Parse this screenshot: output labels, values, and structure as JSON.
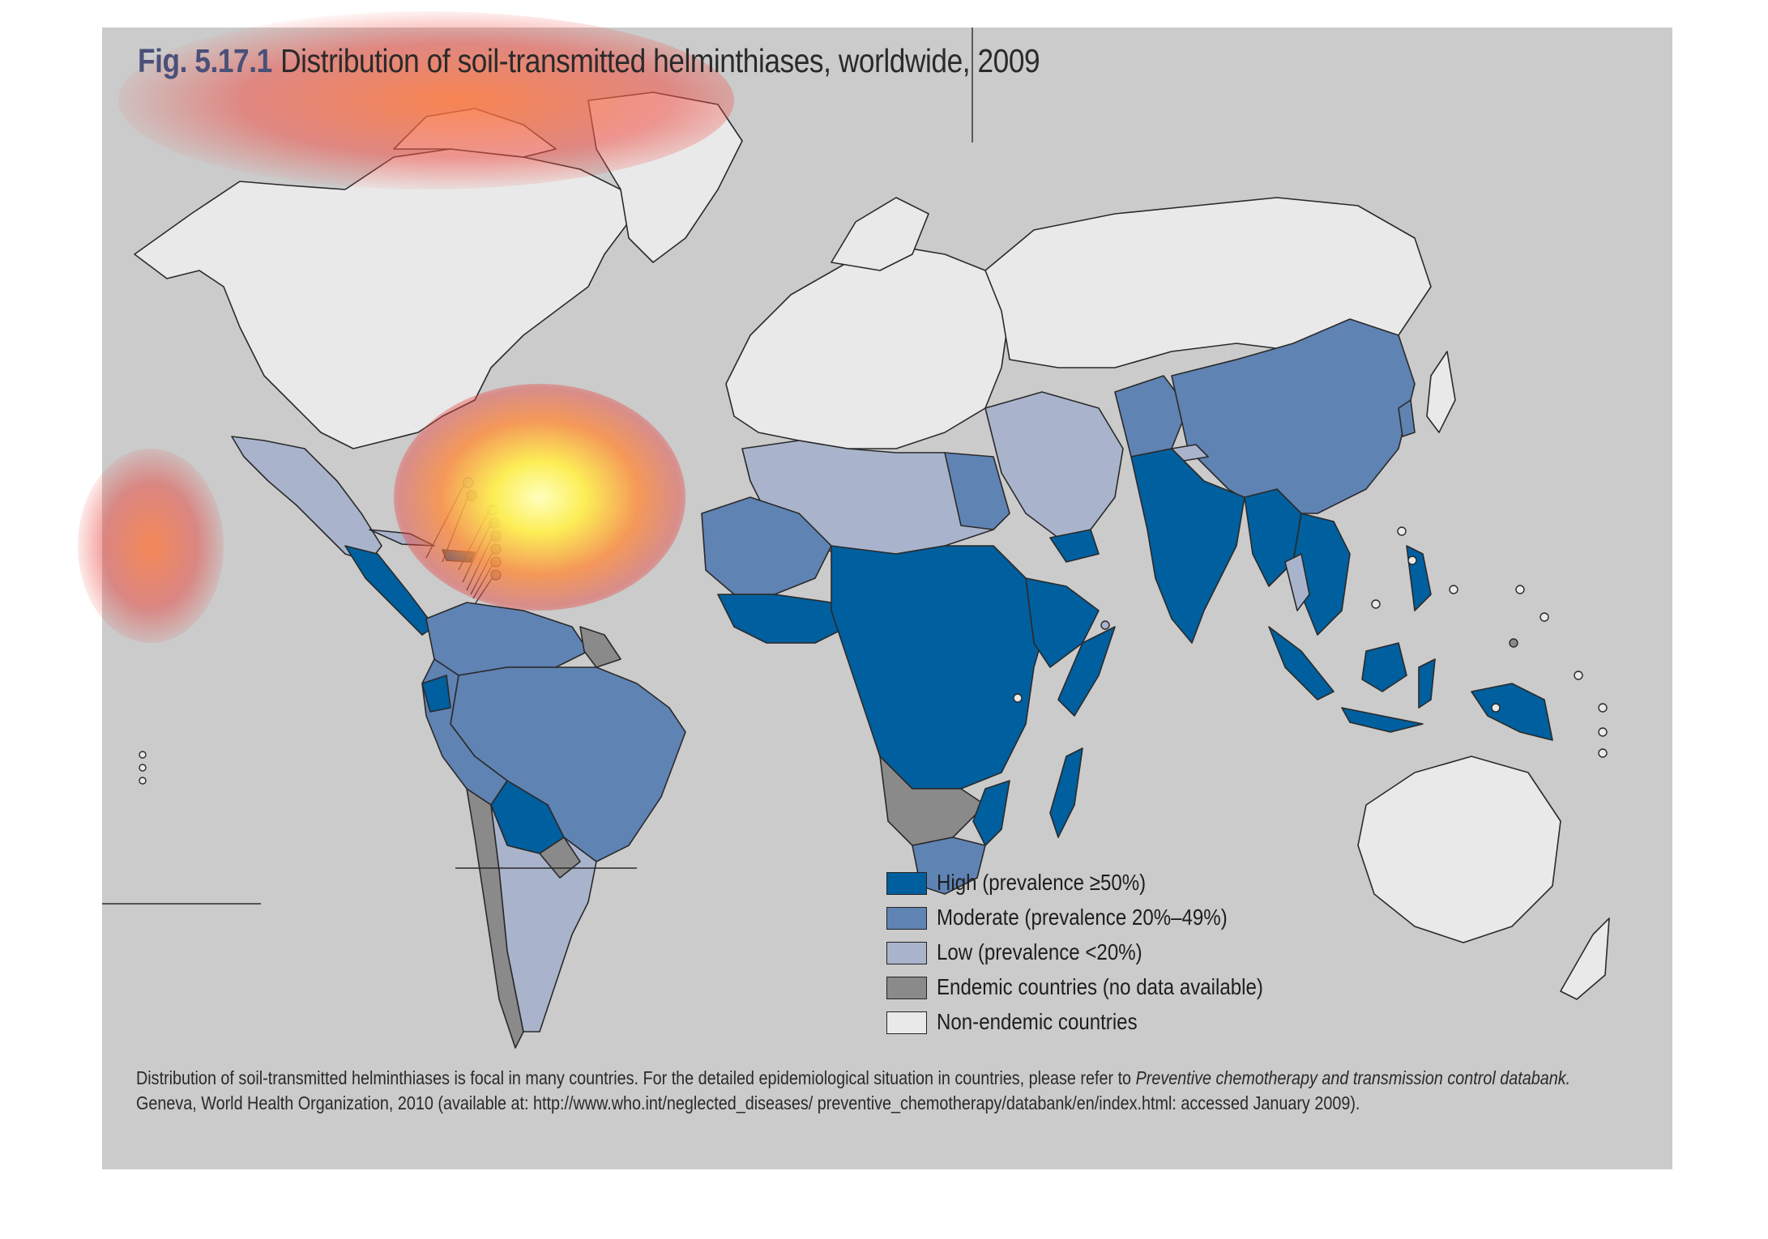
{
  "figure": {
    "number": "Fig. 5.17.1",
    "title": "Distribution of soil-transmitted helminthiases, worldwide, 2009"
  },
  "legend": [
    {
      "label": "High (prevalence ≥50%)",
      "color": "#005f9e"
    },
    {
      "label": "Moderate (prevalence 20%–49%)",
      "color": "#5f83b3"
    },
    {
      "label": "Low (prevalence <20%)",
      "color": "#a9b4cc"
    },
    {
      "label": "Endemic countries (no data available)",
      "color": "#8a8a8a"
    },
    {
      "label": "Non-endemic countries",
      "color": "#e9e9e9"
    }
  ],
  "footnote": {
    "text_before": "Distribution of soil-transmitted helminthiases is focal in many countries. For the detailed epidemiological situation in countries, please refer to ",
    "italic": "Preventive chemotherapy and transmission control databank.",
    "text_after": "Geneva, World Health Organization, 2010 (available at: http://www.who.int/neglected_diseases/ preventive_chemotherapy/databank/en/index.html: accessed January 2009)."
  },
  "colors": {
    "panel_background": "#cbcbcb",
    "country_outline": "#2a2a2a",
    "heatmap_overlay": [
      "#ffff80",
      "#ff6e3a",
      "#e8413a"
    ]
  }
}
